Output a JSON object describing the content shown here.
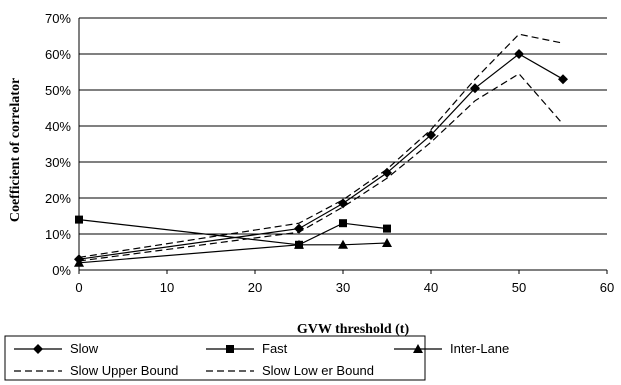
{
  "chart_data": {
    "type": "line",
    "title": "",
    "xlabel": "GVW threshold (t)",
    "ylabel": "Coefficient of correlator",
    "xlim": [
      0,
      60
    ],
    "ylim": [
      0,
      70
    ],
    "x_ticks": [
      "0",
      "10",
      "20",
      "30",
      "40",
      "50",
      "60"
    ],
    "y_ticks": [
      "0%",
      "10%",
      "20%",
      "30%",
      "40%",
      "50%",
      "60%",
      "70%"
    ],
    "grid": "horizontal",
    "legend_placement": "bottom",
    "series": [
      {
        "name": "Slow",
        "marker": "diamond",
        "dash": "solid",
        "color": "#000000",
        "x": [
          0,
          25,
          30,
          35,
          40,
          45,
          50,
          55
        ],
        "y": [
          3,
          11.5,
          18.5,
          27,
          37.5,
          50.5,
          60,
          53
        ]
      },
      {
        "name": "Fast",
        "marker": "square",
        "dash": "solid",
        "color": "#000000",
        "x": [
          0,
          25,
          30,
          35
        ],
        "y": [
          14,
          7,
          13,
          11.5
        ]
      },
      {
        "name": "Inter-Lane",
        "marker": "triangle",
        "dash": "solid",
        "color": "#000000",
        "x": [
          0,
          25,
          30,
          35
        ],
        "y": [
          2,
          7,
          7,
          7.5
        ]
      },
      {
        "name": "Slow  Upper Bound",
        "marker": "none",
        "dash": "dashed",
        "color": "#000000",
        "x": [
          0,
          25,
          30,
          35,
          40,
          45,
          50,
          55
        ],
        "y": [
          3.5,
          13,
          19.5,
          28,
          39,
          53,
          65.5,
          63
        ]
      },
      {
        "name": "Slow  Low er Bound",
        "marker": "none",
        "dash": "dashed",
        "color": "#000000",
        "x": [
          0,
          25,
          30,
          35,
          40,
          45,
          50,
          55
        ],
        "y": [
          2.5,
          10.5,
          17.5,
          25.5,
          35.5,
          47,
          54.5,
          40.5
        ]
      }
    ]
  }
}
